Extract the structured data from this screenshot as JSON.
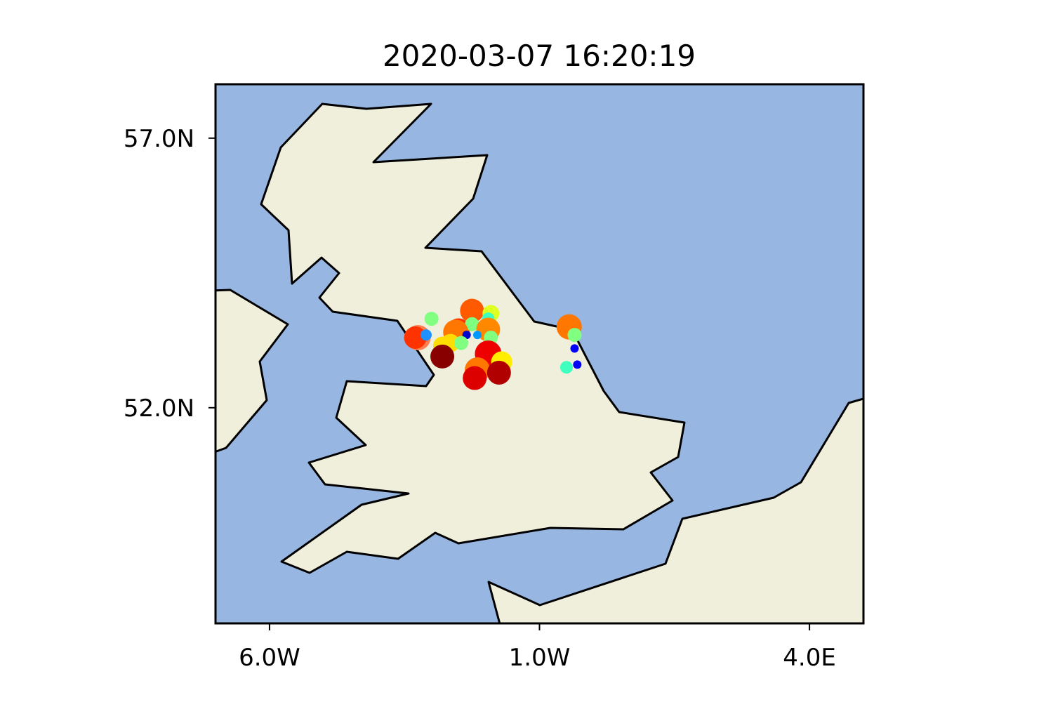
{
  "title": "2020-03-07 16:20:19",
  "colors": {
    "ocean": "#97b6e1",
    "land": "#efefdb",
    "coastline": "#000000"
  },
  "chart_data": {
    "type": "scatter",
    "map_projection": "plate-carree",
    "lon_range": [
      -7.0,
      5.0
    ],
    "lat_range": [
      48.0,
      58.0
    ],
    "x_ticks": [
      {
        "value": -6.0,
        "label": "6.0W"
      },
      {
        "value": -1.0,
        "label": "1.0W"
      },
      {
        "value": 4.0,
        "label": "4.0E"
      }
    ],
    "y_ticks": [
      {
        "value": 57.0,
        "label": "57.0N"
      },
      {
        "value": 52.0,
        "label": "52.0N"
      }
    ],
    "points": [
      {
        "lon": -3.25,
        "lat": 53.3,
        "color": "#ff7f50"
      },
      {
        "lon": -3.3,
        "lat": 53.3,
        "color": "#ff3300"
      },
      {
        "lon": -3.1,
        "lat": 53.35,
        "color": "#1e90ff"
      },
      {
        "lon": -2.0,
        "lat": 53.35,
        "color": "#0033ff"
      },
      {
        "lon": -3.0,
        "lat": 53.65,
        "color": "#80ff80"
      },
      {
        "lon": -2.5,
        "lat": 53.45,
        "color": "#ff3300"
      },
      {
        "lon": -2.25,
        "lat": 53.8,
        "color": "#ff5a00"
      },
      {
        "lon": -1.9,
        "lat": 53.75,
        "color": "#ddff22"
      },
      {
        "lon": -1.95,
        "lat": 53.65,
        "color": "#3fffbf"
      },
      {
        "lon": -2.25,
        "lat": 53.55,
        "color": "#7fff7f"
      },
      {
        "lon": -1.95,
        "lat": 53.45,
        "color": "#ff8800"
      },
      {
        "lon": -2.55,
        "lat": 53.4,
        "color": "#ff7700"
      },
      {
        "lon": -2.15,
        "lat": 53.35,
        "color": "#0099ff"
      },
      {
        "lon": -2.35,
        "lat": 53.35,
        "color": "#0000cc"
      },
      {
        "lon": -2.65,
        "lat": 53.2,
        "color": "#ffdd00"
      },
      {
        "lon": -2.45,
        "lat": 53.2,
        "color": "#80ff80"
      },
      {
        "lon": -1.9,
        "lat": 53.3,
        "color": "#80ff80"
      },
      {
        "lon": -0.45,
        "lat": 53.5,
        "color": "#ff7700"
      },
      {
        "lon": -0.35,
        "lat": 53.35,
        "color": "#80ff80"
      },
      {
        "lon": -2.8,
        "lat": 53.15,
        "color": "#ffdd00"
      },
      {
        "lon": -2.8,
        "lat": 52.95,
        "color": "#880000"
      },
      {
        "lon": -1.95,
        "lat": 53.0,
        "color": "#ee0000"
      },
      {
        "lon": -1.7,
        "lat": 52.85,
        "color": "#ffee00"
      },
      {
        "lon": -0.35,
        "lat": 53.1,
        "color": "#0000ff"
      },
      {
        "lon": -0.3,
        "lat": 52.8,
        "color": "#0000ff"
      },
      {
        "lon": -0.5,
        "lat": 52.75,
        "color": "#3fffbf"
      },
      {
        "lon": -2.15,
        "lat": 52.7,
        "color": "#ff7700"
      },
      {
        "lon": -1.75,
        "lat": 52.65,
        "color": "#b00000"
      },
      {
        "lon": -2.2,
        "lat": 52.55,
        "color": "#dd0000"
      }
    ]
  }
}
